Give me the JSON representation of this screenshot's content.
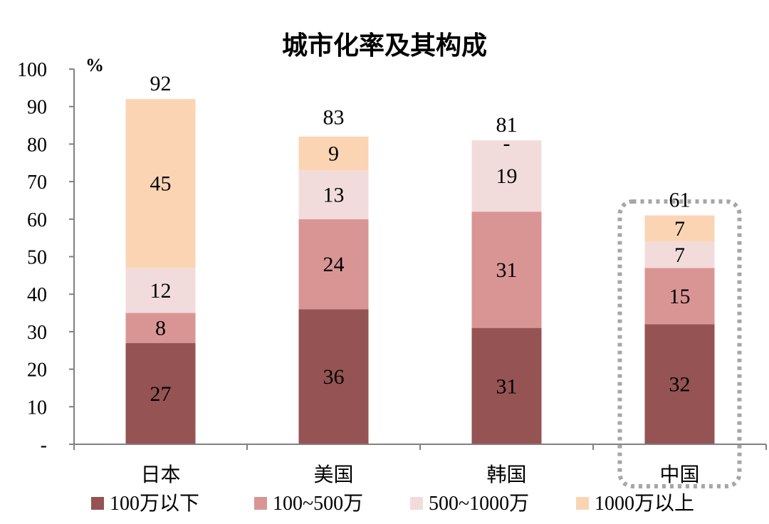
{
  "chart_data": {
    "type": "bar",
    "stacked": true,
    "title": "城市化率及其构成",
    "ylabel": "%",
    "ylim": [
      0,
      100
    ],
    "yticks": [
      {
        "value": 0,
        "label": "-"
      },
      {
        "value": 10,
        "label": "10"
      },
      {
        "value": 20,
        "label": "20"
      },
      {
        "value": 30,
        "label": "30"
      },
      {
        "value": 40,
        "label": "40"
      },
      {
        "value": 50,
        "label": "50"
      },
      {
        "value": 60,
        "label": "60"
      },
      {
        "value": 70,
        "label": "70"
      },
      {
        "value": 80,
        "label": "80"
      },
      {
        "value": 90,
        "label": "90"
      },
      {
        "value": 100,
        "label": "100"
      }
    ],
    "categories": [
      "日本",
      "美国",
      "韩国",
      "中国"
    ],
    "series": [
      {
        "name": "100万以下",
        "color": "#955353",
        "values": [
          27,
          36,
          31,
          32
        ],
        "labels": [
          "27",
          "36",
          "31",
          "32"
        ]
      },
      {
        "name": "100~500万",
        "color": "#d99594",
        "values": [
          8,
          24,
          31,
          15
        ],
        "labels": [
          "8",
          "24",
          "31",
          "15"
        ]
      },
      {
        "name": "500~1000万",
        "color": "#f2dcdb",
        "values": [
          12,
          13,
          19,
          7
        ],
        "labels": [
          "12",
          "13",
          "19",
          "7"
        ]
      },
      {
        "name": "1000万以上",
        "color": "#fbd4b4",
        "values": [
          45,
          9,
          0,
          7
        ],
        "labels": [
          "45",
          "9",
          "-",
          "7"
        ]
      }
    ],
    "totals": [
      "92",
      "83",
      "81",
      "61"
    ],
    "highlight": {
      "category": "中国",
      "style": "dotted-box",
      "color": "#a6a6a6"
    },
    "legend": {
      "position": "bottom"
    },
    "grid": false
  }
}
